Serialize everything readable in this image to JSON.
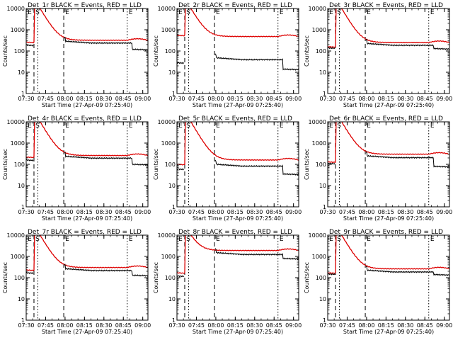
{
  "figure": {
    "common": {
      "type": "line",
      "ylabel": "Counts/sec",
      "xlabel": "Start Time (27-Apr-09 07:25:40)",
      "y_scale": "log",
      "ylim": [
        1,
        10000
      ],
      "y_ticks": [
        1,
        10,
        100,
        1000,
        10000
      ],
      "y_tick_labels": [
        "1",
        "10",
        "100",
        "1000",
        "10000"
      ],
      "xlim_minutes": [
        0,
        94
      ],
      "x_ticks": [
        "07:30",
        "07:45",
        "08:00",
        "08:15",
        "08:30",
        "08:45",
        "09:00"
      ],
      "dashed_markers": [
        "07:36",
        "07:59"
      ],
      "dotted_markers": [
        "07:39",
        "08:48"
      ],
      "box_labels": [
        "E",
        "S",
        "E",
        "E"
      ],
      "series_colors": {
        "events": "#000000",
        "lld": "#dd0000"
      }
    },
    "panels": [
      {
        "title": "Det_1r BLACK = Events, RED = LLD",
        "x_tick_labels": [
          "07:30",
          "07:45",
          "08:00",
          "08:15",
          "08:30",
          "08:45",
          "09:00"
        ],
        "lld_base": 260,
        "lld_peak": 12000,
        "lld_tail": 320,
        "evt_base": 190,
        "evt_tail": 230,
        "evt_end": 120
      },
      {
        "title": "Det_2r BLACK = Events, RED = LLD",
        "x_tick_labels": [
          "07:30",
          "07:45",
          "08:00",
          "08:15",
          "08:30",
          "08:45",
          "09:00"
        ],
        "lld_base": 550,
        "lld_peak": 12000,
        "lld_tail": 480,
        "evt_base": 28,
        "evt_tail": 38,
        "evt_end": 14
      },
      {
        "title": "Det_3r BLACK = Events, RED = LLD",
        "x_tick_labels": [
          "07:30",
          "07:45",
          "08:00",
          "08:15",
          "08:30",
          "08:45",
          "09:00"
        ],
        "lld_base": 160,
        "lld_peak": 12000,
        "lld_tail": 250,
        "evt_base": 140,
        "evt_tail": 180,
        "evt_end": 130
      },
      {
        "title": "Det_4r BLACK = Events, RED = LLD",
        "x_tick_labels": [
          "07:30",
          "07:45",
          "08:00",
          "08:15",
          "08:30",
          "08:45",
          "09:00"
        ],
        "lld_base": 220,
        "lld_peak": 12000,
        "lld_tail": 260,
        "evt_base": 160,
        "evt_tail": 190,
        "evt_end": 100
      },
      {
        "title": "Det_5r BLACK = Events, RED = LLD",
        "x_tick_labels": [
          "07:30",
          "07:45",
          "08:00",
          "08:15",
          "08:30",
          "08:45",
          "09:00"
        ],
        "lld_base": 100,
        "lld_peak": 12000,
        "lld_tail": 160,
        "evt_base": 60,
        "evt_tail": 80,
        "evt_end": 35
      },
      {
        "title": "Det_6r BLACK = Events, RED = LLD",
        "x_tick_labels": [
          "07:30",
          "07:45",
          "08:00",
          "08:15",
          "08:30",
          "08:45",
          "09:00"
        ],
        "lld_base": 130,
        "lld_peak": 12000,
        "lld_tail": 300,
        "evt_base": 110,
        "evt_tail": 200,
        "evt_end": 80
      },
      {
        "title": "Det_7r BLACK = Events, RED = LLD",
        "x_tick_labels": [
          "07:30",
          "07:45",
          "08:00",
          "08:15",
          "08:30",
          "08:45",
          "09:00"
        ],
        "lld_base": 230,
        "lld_peak": 12000,
        "lld_tail": 300,
        "evt_base": 170,
        "evt_tail": 210,
        "evt_end": 130
      },
      {
        "title": "Det_8r BLACK = Events, RED = LLD",
        "x_tick_labels": [
          "07:30",
          "07:45",
          "08:00",
          "08:15",
          "08:30",
          "08:45",
          "09:00"
        ],
        "lld_base": 170,
        "lld_peak": 12000,
        "lld_tail": 1900,
        "evt_base": 120,
        "evt_tail": 1200,
        "evt_end": 800
      },
      {
        "title": "Det_9r BLACK = Events, RED = LLD",
        "x_tick_labels": [
          "07:30",
          "07:45",
          "08:00",
          "08:15",
          "08:30",
          "08:45",
          "09:00"
        ],
        "lld_base": 170,
        "lld_peak": 12000,
        "lld_tail": 260,
        "evt_base": 150,
        "evt_tail": 180,
        "evt_end": 140
      }
    ]
  }
}
